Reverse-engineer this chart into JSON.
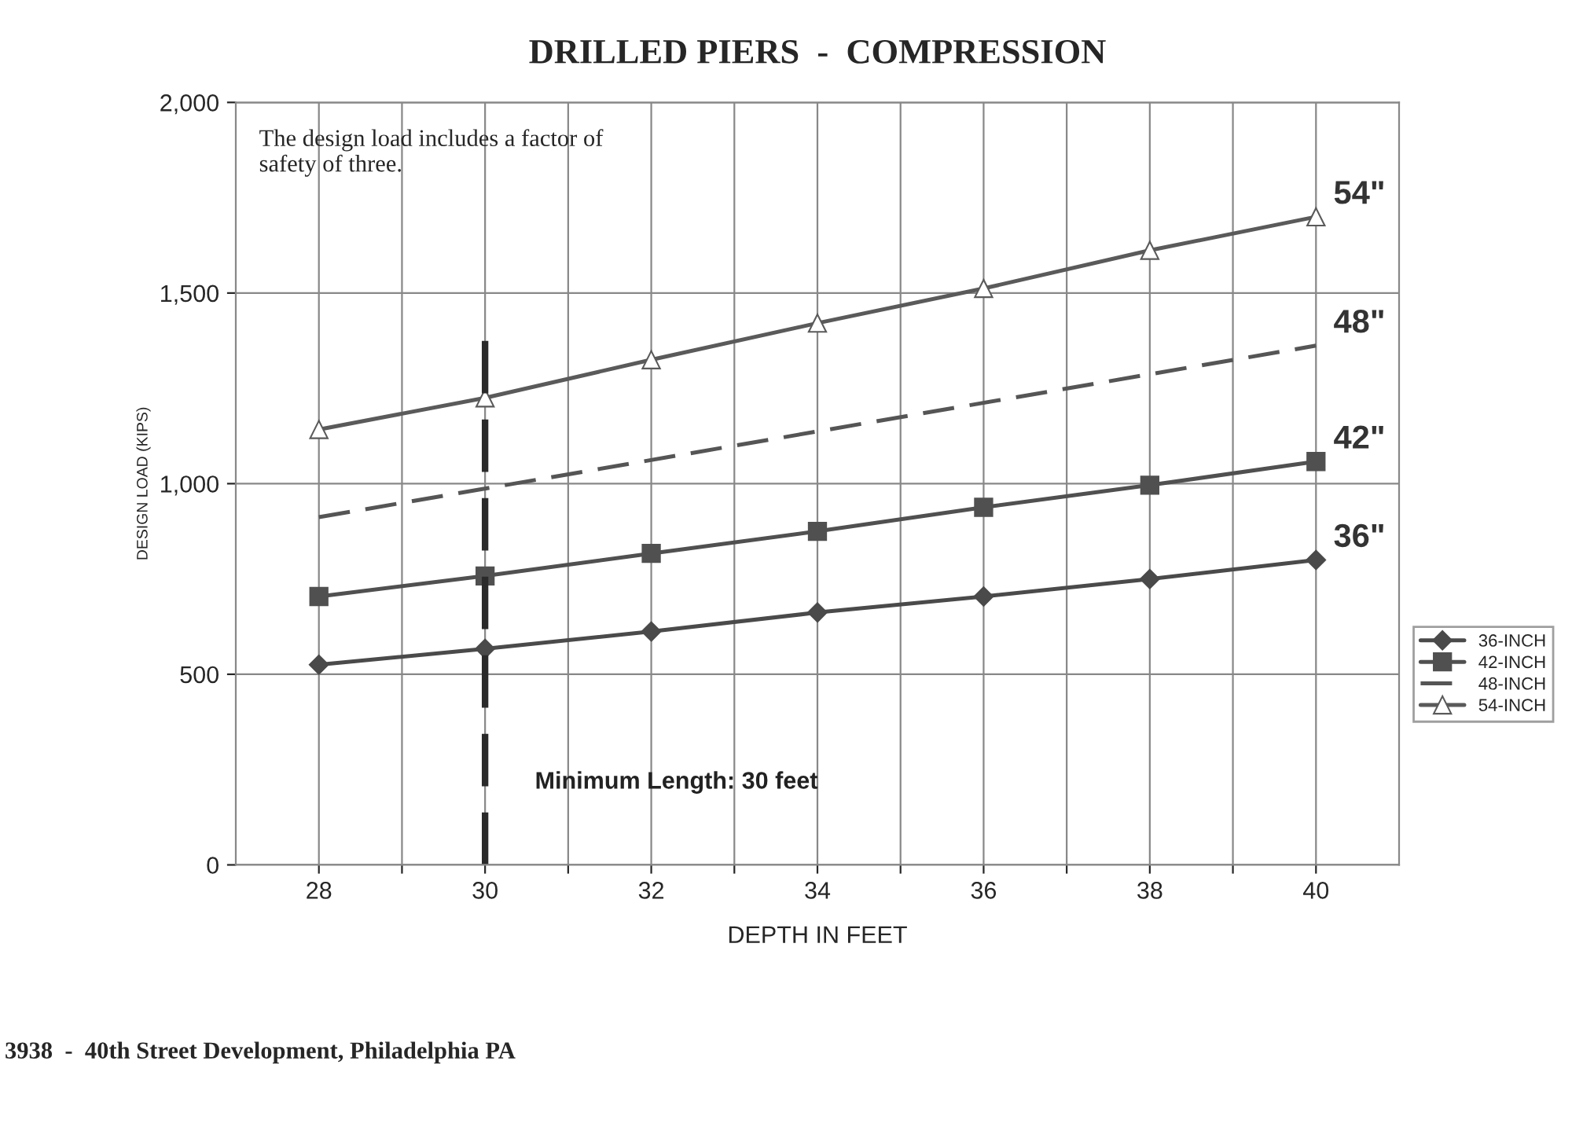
{
  "chart_data": {
    "type": "line",
    "title": "DRILLED PIERS  -  COMPRESSION",
    "xlabel": "DEPTH IN FEET",
    "ylabel": "DESIGN LOAD (KIPS)",
    "x": [
      28,
      30,
      32,
      34,
      36,
      38,
      40
    ],
    "series": [
      {
        "name": "36-INCH",
        "color": "#4a4a4a",
        "marker": "diamond",
        "line_style": "solid",
        "values": [
          525,
          567,
          612,
          662,
          704,
          750,
          800
        ]
      },
      {
        "name": "42-INCH",
        "color": "#505050",
        "marker": "square",
        "line_style": "solid",
        "values": [
          704,
          758,
          817,
          875,
          938,
          996,
          1058
        ]
      },
      {
        "name": "48-INCH",
        "color": "#555555",
        "marker": "none",
        "line_style": "dashed",
        "x": [
          28,
          40
        ],
        "values": [
          912,
          1362
        ]
      },
      {
        "name": "54-INCH",
        "color": "#5a5a5a",
        "marker": "triangle",
        "line_style": "solid",
        "values": [
          1142,
          1225,
          1325,
          1421,
          1512,
          1612,
          1700
        ]
      }
    ],
    "xlim": [
      27,
      41
    ],
    "xticks": [
      28,
      {
        "value": 29,
        "label": null
      },
      30,
      {
        "value": 31,
        "label": null
      },
      32,
      {
        "value": 33,
        "label": null
      },
      34,
      {
        "value": 35,
        "label": null
      },
      36,
      {
        "value": 37,
        "label": null
      },
      38,
      {
        "value": 39,
        "label": null
      },
      40
    ],
    "ylim": [
      0,
      2000
    ],
    "yticks": [
      0,
      500,
      {
        "value": 1000,
        "label": "1,000"
      },
      {
        "value": 1500,
        "label": "1,500"
      },
      {
        "value": 2000,
        "label": "2,000"
      }
    ],
    "grid": true,
    "legend": "right",
    "ref_lines": [
      {
        "axis": "x",
        "value": 30,
        "label": "Minimum Length: 30 feet",
        "color": "#2a2a2a",
        "line_style": "dashed"
      }
    ],
    "annotations": [
      "36\"",
      "42\"",
      "48\"",
      "54\"",
      "The design load includes a factor of\nsafety of three.",
      "3938  -  40th Street Development, Philadelphia PA"
    ]
  }
}
